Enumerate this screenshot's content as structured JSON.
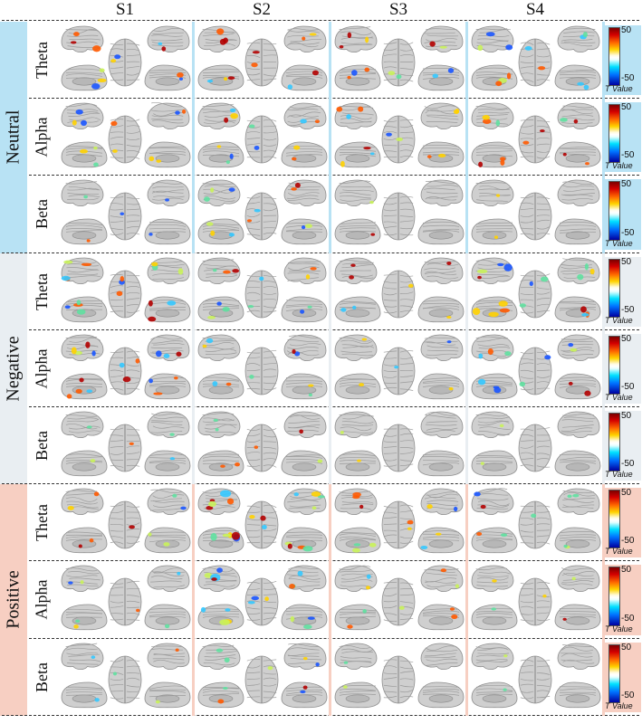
{
  "columns": [
    "S1",
    "S2",
    "S3",
    "S4"
  ],
  "colorbar": {
    "max": "50",
    "min": "-50",
    "title": "T Value"
  },
  "groups": [
    {
      "name": "Neutral",
      "tint": "#b8e2f4",
      "bands": [
        {
          "label": "Theta",
          "activity": [
            0.6,
            0.6,
            0.6,
            0.6
          ]
        },
        {
          "label": "Alpha",
          "activity": [
            0.5,
            0.6,
            0.6,
            0.6
          ]
        },
        {
          "label": "Beta",
          "activity": [
            0.15,
            0.5,
            0.1,
            0.1
          ]
        }
      ]
    },
    {
      "name": "Negative",
      "tint": "#e9eef2",
      "bands": [
        {
          "label": "Theta",
          "activity": [
            0.8,
            0.5,
            0.3,
            0.8
          ]
        },
        {
          "label": "Alpha",
          "activity": [
            0.8,
            0.4,
            0.2,
            0.6
          ]
        },
        {
          "label": "Beta",
          "activity": [
            0.2,
            0.3,
            0.1,
            0.1
          ]
        }
      ]
    },
    {
      "name": "Positive",
      "tint": "#f7cfc2",
      "bands": [
        {
          "label": "Theta",
          "activity": [
            0.4,
            0.9,
            0.6,
            0.4
          ]
        },
        {
          "label": "Alpha",
          "activity": [
            0.3,
            0.8,
            0.4,
            0.2
          ]
        },
        {
          "label": "Beta",
          "activity": [
            0.2,
            0.4,
            0.1,
            0.1
          ]
        }
      ]
    }
  ],
  "colors": {
    "neutral_tint": "#b8e2f4",
    "negative_tint": "#e9eef2",
    "positive_tint": "#f7cfc2",
    "brain_fill": "#cfcfcf",
    "brain_stroke": "#8f8f8f"
  }
}
